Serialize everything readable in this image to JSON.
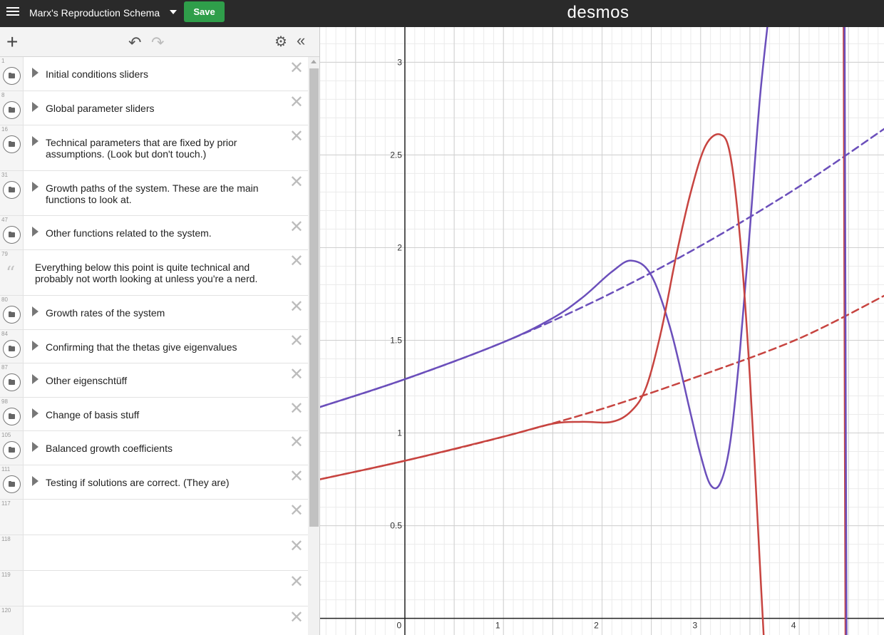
{
  "header": {
    "title": "Marx's Reproduction Schema",
    "save_label": "Save",
    "logo": "desmos"
  },
  "icons": {
    "menu": "hamburger-menu-icon",
    "add": "plus-icon",
    "undo": "undo-icon",
    "redo": "redo-icon",
    "settings": "gear-icon",
    "collapse": "double-chevron-left-icon",
    "folder": "folder-icon",
    "note": "quote-icon",
    "delete": "close-icon"
  },
  "expressions": [
    {
      "num": "1",
      "kind": "folder",
      "label": "Initial conditions sliders"
    },
    {
      "num": "8",
      "kind": "folder",
      "label": "Global parameter sliders"
    },
    {
      "num": "16",
      "kind": "folder",
      "label": "Technical parameters that are fixed by prior assumptions. (Look but don't touch.)"
    },
    {
      "num": "31",
      "kind": "folder",
      "label": "Growth paths of the system. These are the main functions to look at."
    },
    {
      "num": "47",
      "kind": "folder",
      "label": "Other functions related to the system."
    },
    {
      "num": "79",
      "kind": "note",
      "label": "Everything below this point is quite technical and probably not worth looking at unless you're a nerd."
    },
    {
      "num": "80",
      "kind": "folder",
      "label": "Growth rates of the system"
    },
    {
      "num": "84",
      "kind": "folder",
      "label": "Confirming that the thetas give eigenvalues"
    },
    {
      "num": "87",
      "kind": "folder",
      "label": "Other eigenschtüff"
    },
    {
      "num": "98",
      "kind": "folder",
      "label": "Change of basis stuff"
    },
    {
      "num": "105",
      "kind": "folder",
      "label": "Balanced growth coefficients"
    },
    {
      "num": "111",
      "kind": "folder",
      "label": "Testing if solutions are correct. (They are)"
    },
    {
      "num": "117",
      "kind": "empty",
      "label": ""
    },
    {
      "num": "118",
      "kind": "empty",
      "label": ""
    },
    {
      "num": "119",
      "kind": "empty",
      "label": ""
    },
    {
      "num": "120",
      "kind": "empty",
      "label": ""
    }
  ],
  "chart_data": {
    "type": "line",
    "xlim": [
      -0.86,
      4.86
    ],
    "ylim": [
      -0.09,
      3.19
    ],
    "x_ticks": [
      "0",
      "1",
      "2",
      "3",
      "4"
    ],
    "y_ticks": [
      "0.5",
      "1",
      "1.5",
      "2",
      "2.5",
      "3"
    ],
    "grid": true,
    "colors": {
      "purple": "#6b4fbb",
      "red": "#c74440"
    },
    "series": [
      {
        "color": "#6b4fbb",
        "style": "dashed",
        "x": [
          -0.86,
          0,
          1,
          2,
          3,
          4,
          4.86
        ],
        "y": [
          1.14,
          1.29,
          1.49,
          1.73,
          2.01,
          2.33,
          2.64
        ]
      },
      {
        "color": "#c74440",
        "style": "dashed",
        "x": [
          -0.86,
          0,
          1,
          2,
          3,
          4,
          4.86
        ],
        "y": [
          0.75,
          0.85,
          0.98,
          1.13,
          1.31,
          1.51,
          1.74
        ]
      },
      {
        "color": "#6b4fbb",
        "style": "solid",
        "x": [
          -0.86,
          0,
          1,
          1.5,
          1.8,
          2.1,
          2.3,
          2.5,
          2.7,
          2.9,
          3.0,
          3.1,
          3.2,
          3.3,
          3.4,
          3.5,
          3.6,
          3.7
        ],
        "y": [
          1.14,
          1.29,
          1.49,
          1.62,
          1.73,
          1.87,
          1.93,
          1.85,
          1.55,
          1.1,
          0.88,
          0.72,
          0.73,
          0.95,
          1.45,
          2.1,
          2.8,
          3.3
        ]
      },
      {
        "color": "#c74440",
        "style": "solid",
        "x": [
          -0.86,
          0,
          1,
          1.5,
          1.8,
          2.1,
          2.3,
          2.45,
          2.6,
          2.75,
          2.9,
          3.05,
          3.2,
          3.3,
          3.4,
          3.5,
          3.6,
          3.65
        ],
        "y": [
          0.75,
          0.85,
          0.98,
          1.05,
          1.06,
          1.06,
          1.12,
          1.25,
          1.55,
          1.95,
          2.3,
          2.55,
          2.61,
          2.5,
          2.05,
          1.3,
          0.3,
          -0.2
        ]
      },
      {
        "color": "#c74440",
        "style": "solid",
        "x": [
          4.45,
          4.46,
          4.47
        ],
        "y": [
          3.3,
          1.5,
          -0.2
        ]
      },
      {
        "color": "#6b4fbb",
        "style": "solid",
        "x": [
          4.46,
          4.47,
          4.48
        ],
        "y": [
          3.3,
          1.5,
          -0.2
        ]
      }
    ]
  }
}
